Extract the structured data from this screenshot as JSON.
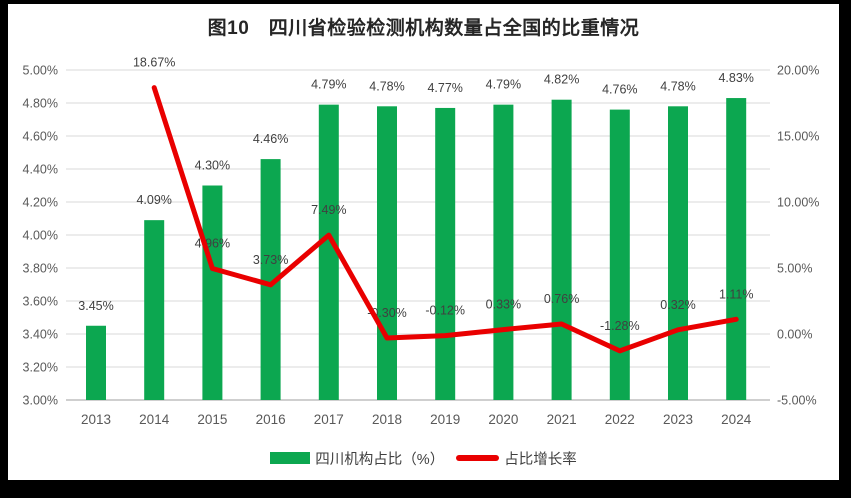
{
  "title": "图10　四川省检验检测机构数量占全国的比重情况",
  "colors": {
    "bar": "#0CA750",
    "line": "#E90000",
    "grid": "#D9D9D9",
    "axis_line": "#BFBFBF",
    "tick_text": "#595959",
    "label_text": "#404040",
    "title_text": "#262626",
    "frame": "#000000",
    "background": "#FFFFFF"
  },
  "legend": {
    "items": [
      {
        "label": "四川机构占比（%）",
        "type": "bar"
      },
      {
        "label": "占比增长率",
        "type": "line"
      }
    ]
  },
  "chart_data": {
    "type": "combo (bar+line)",
    "title": "图10　四川省检验检测机构数量占全国的比重情况",
    "categories": [
      "2013",
      "2014",
      "2015",
      "2016",
      "2017",
      "2018",
      "2019",
      "2020",
      "2021",
      "2022",
      "2023",
      "2024"
    ],
    "series": [
      {
        "name": "四川机构占比（%）",
        "type": "bar",
        "axis": "left",
        "values": [
          3.45,
          4.09,
          4.3,
          4.46,
          4.79,
          4.78,
          4.77,
          4.79,
          4.82,
          4.76,
          4.78,
          4.83
        ],
        "labels": [
          "3.45%",
          "4.09%",
          "4.30%",
          "4.46%",
          "4.79%",
          "4.78%",
          "4.77%",
          "4.79%",
          "4.82%",
          "4.76%",
          "4.78%",
          "4.83%"
        ]
      },
      {
        "name": "占比增长率",
        "type": "line",
        "axis": "right",
        "values": [
          null,
          18.67,
          4.96,
          3.73,
          7.49,
          -0.3,
          -0.12,
          0.33,
          0.76,
          -1.28,
          0.32,
          1.11
        ],
        "labels": [
          null,
          "18.67%",
          "4.96%",
          "3.73%",
          "7.49%",
          "-0.30%",
          "-0.12%",
          "0.33%",
          "0.76%",
          "-1.28%",
          "0.32%",
          "1.11%"
        ]
      }
    ],
    "left_axis": {
      "range": [
        3.0,
        5.0
      ],
      "step": 0.2,
      "ticks": [
        "5.00%",
        "4.80%",
        "4.60%",
        "4.40%",
        "4.20%",
        "4.00%",
        "3.80%",
        "3.60%",
        "3.40%",
        "3.20%",
        "3.00%"
      ]
    },
    "right_axis": {
      "range": [
        -5,
        20
      ],
      "step": 5,
      "ticks": [
        "20.00%",
        "15.00%",
        "10.00%",
        "5.00%",
        "0.00%",
        "-5.00%"
      ]
    },
    "grid": true,
    "legend_position": "bottom"
  }
}
